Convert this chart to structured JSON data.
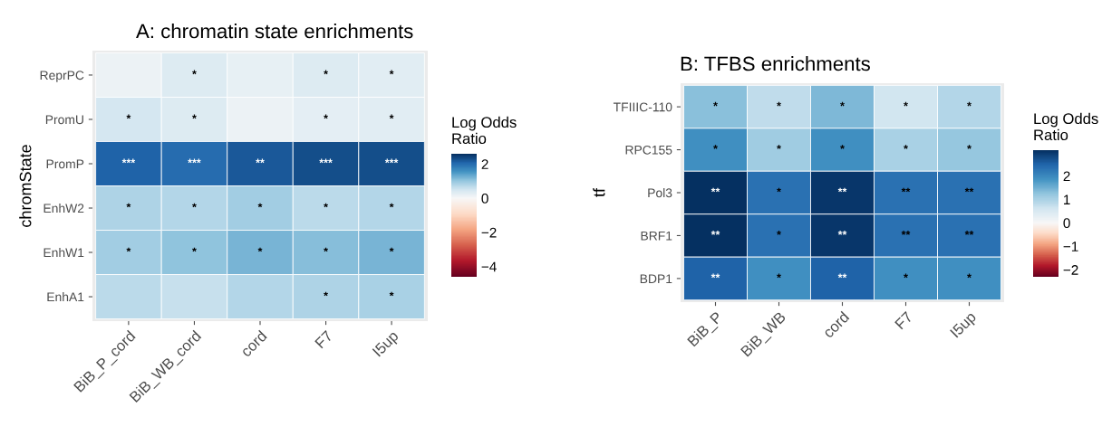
{
  "chart_data": [
    {
      "type": "heatmap",
      "title": "A: chromatin state enrichments",
      "ylabel": "chromState",
      "clabel": "Log Odds\nRatio",
      "categories": [
        "BiB_P_cord",
        "BiB_WB_cord",
        "cord",
        "F7",
        "I5up"
      ],
      "y_categories": [
        "ReprPC",
        "PromU",
        "PromP",
        "EnhW2",
        "EnhW1",
        "EnhA1"
      ],
      "cells": [
        [
          0.15,
          0.35,
          0.2,
          0.35,
          0.3
        ],
        [
          0.45,
          0.35,
          0.15,
          0.25,
          0.3
        ],
        [
          2.1,
          2.0,
          2.2,
          2.3,
          2.3
        ],
        [
          0.8,
          0.75,
          0.9,
          0.7,
          0.75
        ],
        [
          0.9,
          1.05,
          1.2,
          1.1,
          1.2
        ],
        [
          0.7,
          0.6,
          0.75,
          0.8,
          0.85
        ]
      ],
      "cell_labels": [
        [
          null,
          "*",
          null,
          "*",
          "*"
        ],
        [
          "*",
          "*",
          null,
          "*",
          "*"
        ],
        [
          "***",
          "***",
          "**",
          "***",
          "***"
        ],
        [
          "*",
          "*",
          "*",
          "*",
          "*"
        ],
        [
          "*",
          "*",
          "*",
          "*",
          "*"
        ],
        [
          null,
          null,
          null,
          "*",
          "*"
        ]
      ],
      "clim": [
        -4.6,
        2.6
      ],
      "cticks": [
        -4,
        -2,
        0,
        2
      ]
    },
    {
      "type": "heatmap",
      "title": "B: TFBS enrichments",
      "ylabel": "tf",
      "clabel": "Log Odds\nRatio",
      "categories": [
        "BiB_P",
        "BiB_WB",
        "cord",
        "F7",
        "I5up"
      ],
      "y_categories": [
        "TFIIIC-110",
        "RPC155",
        "Pol3",
        "BRF1",
        "BDP1"
      ],
      "cells": [
        [
          1.3,
          0.8,
          1.4,
          0.6,
          0.9
        ],
        [
          1.9,
          1.1,
          1.9,
          1.0,
          1.2
        ],
        [
          3.1,
          2.3,
          3.0,
          2.3,
          2.3
        ],
        [
          3.1,
          2.3,
          3.0,
          2.3,
          2.3
        ],
        [
          2.5,
          1.9,
          2.5,
          1.9,
          1.9
        ]
      ],
      "cell_labels": [
        [
          "*",
          "*",
          "*",
          "*",
          "*"
        ],
        [
          "*",
          "*",
          "*",
          "*",
          "*"
        ],
        [
          "**",
          "*",
          "**",
          "**",
          "**"
        ],
        [
          "**",
          "*",
          "**",
          "**",
          "**"
        ],
        [
          "**",
          "*",
          "**",
          "*",
          "*"
        ]
      ],
      "clim": [
        -2.3,
        3.1
      ],
      "cticks": [
        -2,
        -1,
        0,
        1,
        2
      ]
    }
  ]
}
